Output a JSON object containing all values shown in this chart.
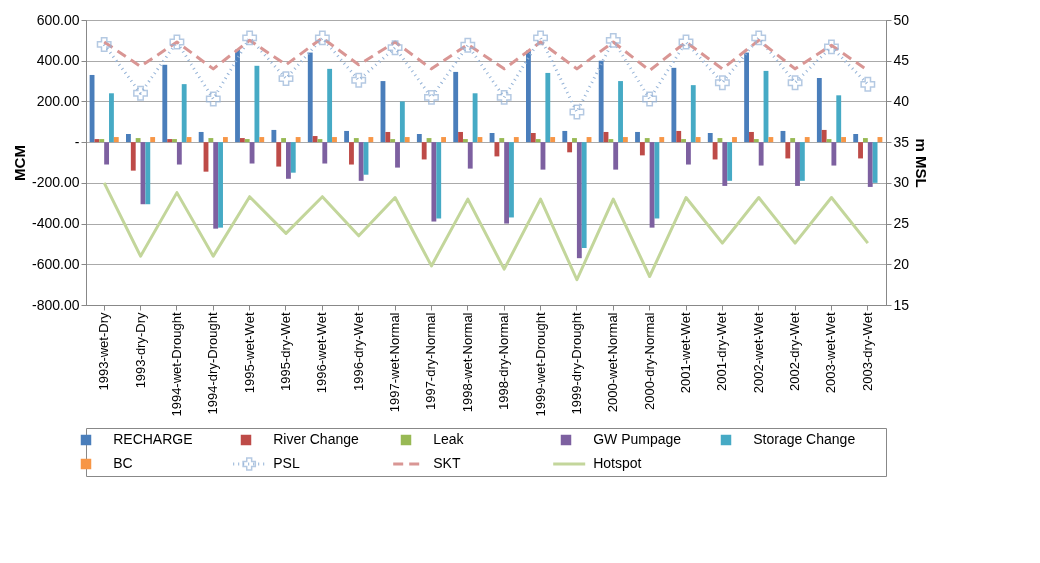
{
  "chart_data": {
    "type": "bar",
    "ylabel": "MCM",
    "y2label": "m MSL",
    "categories": [
      "1993-wet-Dry",
      "1993-dry-Dry",
      "1994-wet-Drought",
      "1994-dry-Drought",
      "1995-wet-Wet",
      "1995-dry-Wet",
      "1996-wet-Wet",
      "1996-dry-Wet",
      "1997-wet-Normal",
      "1997-dry-Normal",
      "1998-wet-Normal",
      "1998-dry-Normal",
      "1999-wet-Drought",
      "1999-dry-Drought",
      "2000-wet-Normal",
      "2000-dry-Normal",
      "2001-wet-Wet",
      "2001-dry-Wet",
      "2002-wet-Wet",
      "2002-dry-Wet",
      "2003-wet-Wet",
      "2003-dry-Wet"
    ],
    "ylim": [
      -800,
      600
    ],
    "yticks": [
      {
        "value": -800,
        "label": "-800.00"
      },
      {
        "value": -600,
        "label": "-600.00"
      },
      {
        "value": -400,
        "label": "-400.00"
      },
      {
        "value": -200,
        "label": "-200.00"
      },
      {
        "value": 0,
        "label": "-"
      },
      {
        "value": 200,
        "label": "200.00"
      },
      {
        "value": 400,
        "label": "400.00"
      },
      {
        "value": 600,
        "label": "600.00"
      }
    ],
    "y2lim": [
      15,
      50
    ],
    "y2ticks": [
      15,
      20,
      25,
      30,
      35,
      40,
      45,
      50
    ],
    "grid": "y",
    "legend": "bottom",
    "series": [
      {
        "name": "RECHARGE",
        "type": "bar",
        "color": "#4a7ebb",
        "values": [
          330,
          40,
          380,
          50,
          455,
          60,
          440,
          55,
          300,
          40,
          345,
          45,
          450,
          55,
          400,
          50,
          365,
          45,
          440,
          55,
          315,
          40
        ]
      },
      {
        "name": "River Change",
        "type": "bar",
        "color": "#be4b48",
        "values": [
          15,
          -140,
          15,
          -145,
          20,
          -120,
          30,
          -110,
          50,
          -85,
          50,
          -70,
          45,
          -50,
          50,
          -65,
          55,
          -85,
          50,
          -80,
          60,
          -80
        ]
      },
      {
        "name": "Leak",
        "type": "bar",
        "color": "#98b954",
        "values": [
          15,
          20,
          15,
          20,
          15,
          20,
          15,
          20,
          15,
          20,
          15,
          20,
          15,
          20,
          15,
          20,
          15,
          20,
          15,
          20,
          15,
          20
        ]
      },
      {
        "name": "GW Pumpage",
        "type": "bar",
        "color": "#7d60a0",
        "values": [
          -110,
          -305,
          -110,
          -425,
          -105,
          -180,
          -105,
          -190,
          -125,
          -390,
          -130,
          -400,
          -135,
          -570,
          -135,
          -420,
          -110,
          -215,
          -115,
          -215,
          -115,
          -220
        ]
      },
      {
        "name": "Storage Change",
        "type": "bar",
        "color": "#46aac5",
        "values": [
          240,
          -305,
          285,
          -420,
          375,
          -150,
          360,
          -160,
          200,
          -375,
          240,
          -370,
          340,
          -520,
          300,
          -375,
          280,
          -190,
          350,
          -190,
          230,
          -200
        ]
      },
      {
        "name": "BC",
        "type": "bar",
        "color": "#f79646",
        "values": [
          25,
          25,
          25,
          25,
          25,
          25,
          25,
          25,
          25,
          25,
          25,
          25,
          25,
          25,
          25,
          25,
          25,
          25,
          25,
          25,
          25,
          25
        ]
      },
      {
        "name": "PSL",
        "type": "line",
        "axis": "y2",
        "color": "#95b3d7",
        "line_style": "dotted",
        "marker": "cross",
        "values": [
          47,
          41,
          47.3,
          40.3,
          47.8,
          42.8,
          47.8,
          42.6,
          46.6,
          40.5,
          46.9,
          40.5,
          47.8,
          38.7,
          47.5,
          40.3,
          47.3,
          42.3,
          47.8,
          42.3,
          46.7,
          42.1
        ]
      },
      {
        "name": "SKT",
        "type": "line",
        "axis": "y2",
        "color": "#d99694",
        "line_style": "dashed",
        "values": [
          47.3,
          44.3,
          47.3,
          44.0,
          47.5,
          44.5,
          47.8,
          44.5,
          47.3,
          44.0,
          47.0,
          44.0,
          47.3,
          44.0,
          47.3,
          43.8,
          47.3,
          44.0,
          47.5,
          44.0,
          46.9,
          43.8
        ]
      },
      {
        "name": "Hotspot",
        "type": "line",
        "axis": "y2",
        "color": "#c3d69b",
        "line_style": "solid",
        "values": [
          30,
          21,
          28.8,
          21,
          28.3,
          23.8,
          28.3,
          23.5,
          28.2,
          19.8,
          28,
          19.4,
          28,
          18.1,
          28,
          18.5,
          28.2,
          22.6,
          28.2,
          22.6,
          28.2,
          22.6
        ]
      }
    ]
  }
}
